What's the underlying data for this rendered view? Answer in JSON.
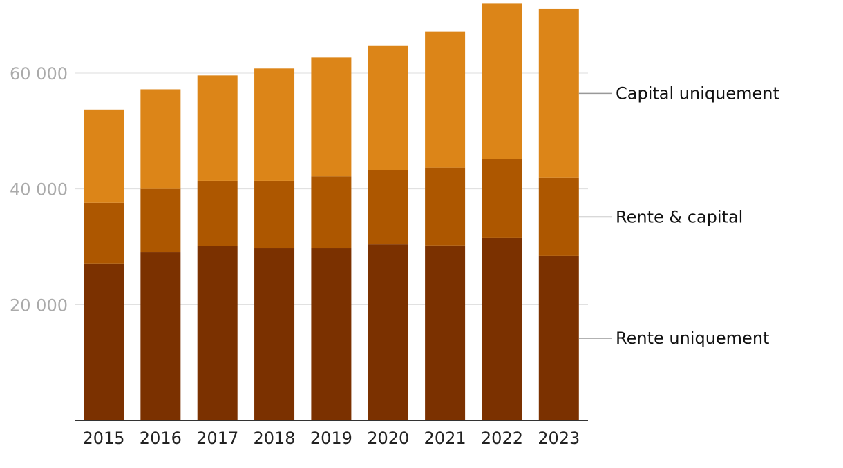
{
  "chart_data": {
    "type": "bar",
    "stacked": true,
    "title": "",
    "xlabel": "",
    "ylabel": "",
    "categories": [
      "2015",
      "2016",
      "2017",
      "2018",
      "2019",
      "2020",
      "2021",
      "2022",
      "2023"
    ],
    "series": [
      {
        "name": "Rente uniquement",
        "color": "#7b3100",
        "values": [
          27100,
          29100,
          30100,
          29700,
          29700,
          30400,
          30200,
          31500,
          28400
        ]
      },
      {
        "name": "Rente & capital",
        "color": "#ad5700",
        "values": [
          10500,
          10900,
          11300,
          11700,
          12500,
          12900,
          13500,
          13600,
          13500
        ]
      },
      {
        "name": "Capital uniquement",
        "color": "#dc8518",
        "values": [
          16100,
          17200,
          18200,
          19400,
          20500,
          21500,
          23500,
          26900,
          29200
        ]
      }
    ],
    "ylim": [
      0,
      72000
    ],
    "yticks": [
      20000,
      40000,
      60000
    ],
    "ytick_labels": [
      "20 000",
      "40 000",
      "60 000"
    ],
    "grid": true,
    "legend_placement": "right, direct labels aligned to segments of the last bar"
  }
}
